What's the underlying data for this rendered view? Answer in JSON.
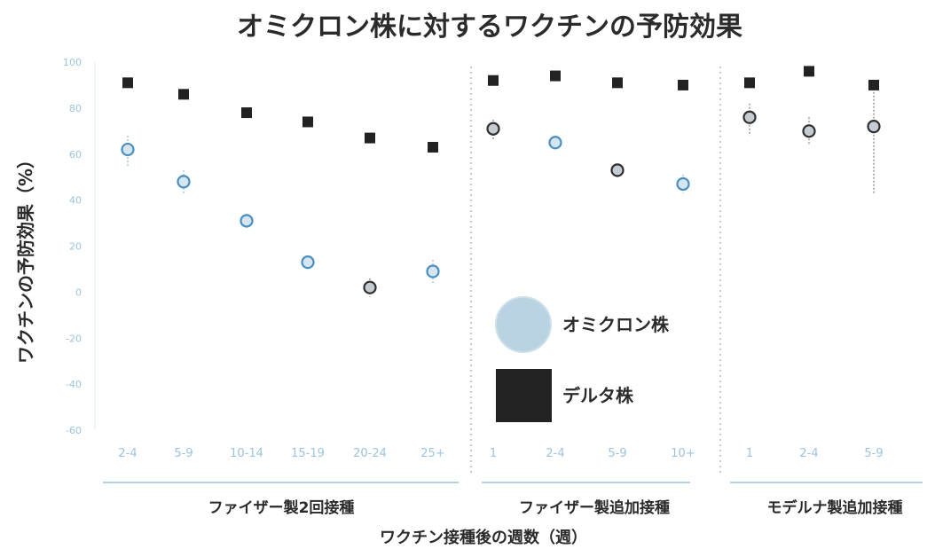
{
  "chart_data": {
    "type": "scatter",
    "title": "オミクロン株に対するワクチンの予防効果",
    "ylabel": "ワクチンの予防効果（%）",
    "xlabel": "ワクチン接種後の週数（週）",
    "ylim": [
      -60,
      100
    ],
    "yticks": [
      "100",
      "80",
      "60",
      "40",
      "20",
      "0",
      "-20",
      "-40",
      "-60"
    ],
    "legend": {
      "position": "center-right",
      "entries": [
        {
          "name": "オミクロン株",
          "color": "#b9d3e2",
          "marker": "circle"
        },
        {
          "name": "デルタ株",
          "color": "#222222",
          "marker": "square"
        }
      ]
    },
    "groups": [
      {
        "label": "ファイザー製2回接種",
        "categories": [
          "2-4",
          "5-9",
          "10-14",
          "15-19",
          "20-24",
          "25+"
        ],
        "omicron": [
          62,
          48,
          31,
          13,
          2,
          9
        ],
        "omicron_ci": [
          [
            55,
            68
          ],
          [
            43,
            53
          ],
          [
            28,
            34
          ],
          [
            10,
            16
          ],
          [
            -2,
            6
          ],
          [
            4,
            14
          ]
        ],
        "omicron_dark": [
          false,
          false,
          false,
          false,
          true,
          false
        ],
        "delta": [
          91,
          86,
          78,
          74,
          67,
          63
        ]
      },
      {
        "label": "ファイザー製追加接種",
        "categories": [
          "1",
          "2-4",
          "5-9",
          "10+"
        ],
        "omicron": [
          71,
          65,
          53,
          47
        ],
        "omicron_ci": [
          [
            66,
            75
          ],
          [
            63,
            67
          ],
          [
            50,
            55
          ],
          [
            43,
            51
          ]
        ],
        "omicron_dark": [
          true,
          false,
          true,
          false
        ],
        "delta": [
          92,
          94,
          91,
          90
        ]
      },
      {
        "label": "モデルナ製追加接種",
        "categories": [
          "1",
          "2-4",
          "5-9"
        ],
        "omicron": [
          76,
          70,
          72
        ],
        "omicron_ci": [
          [
            68,
            82
          ],
          [
            64,
            76
          ],
          [
            43,
            87
          ]
        ],
        "omicron_dark": [
          true,
          true,
          true
        ],
        "delta": [
          91,
          96,
          90
        ]
      }
    ],
    "colors": {
      "omicron_light": "#4a8fbf",
      "omicron_dark": "#2f2f2f",
      "delta": "#222222",
      "axis": "#9cc4dd",
      "text": "#2b2b2b"
    }
  }
}
